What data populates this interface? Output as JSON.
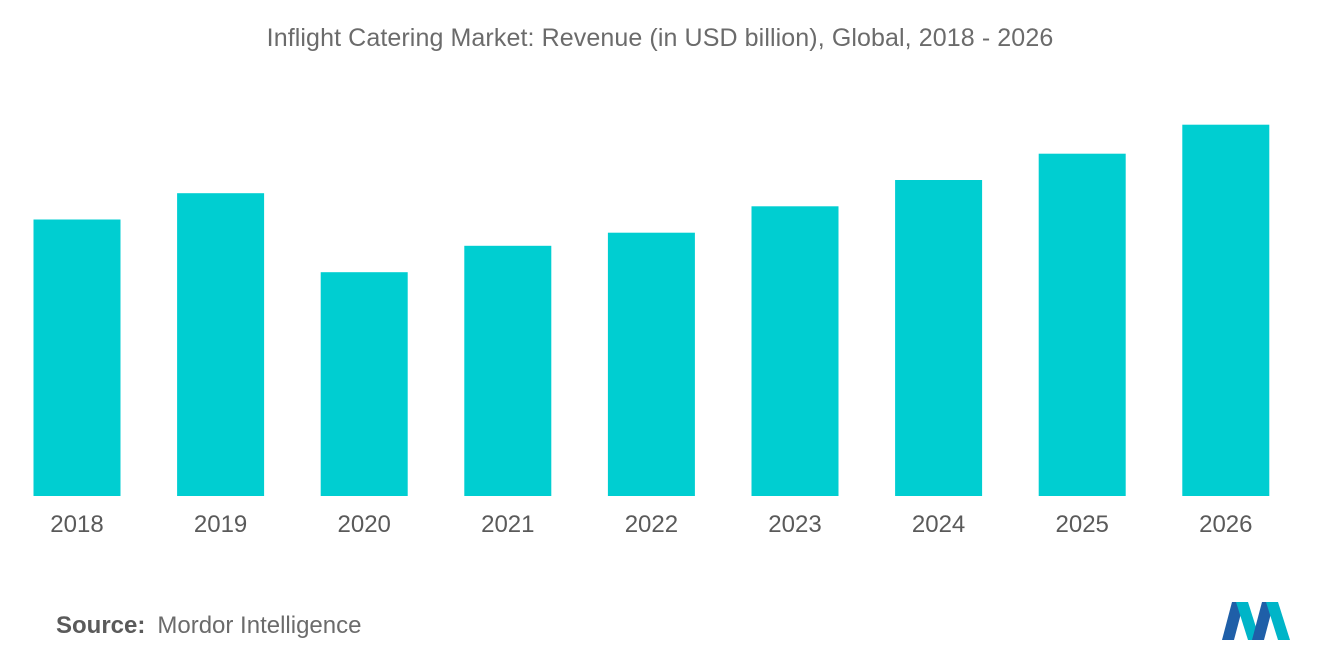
{
  "chart_data": {
    "type": "bar",
    "title": "Inflight Catering Market: Revenue (in USD billion), Global, 2018 - 2026",
    "categories": [
      "2018",
      "2019",
      "2020",
      "2021",
      "2022",
      "2023",
      "2024",
      "2025",
      "2026"
    ],
    "values": [
      21,
      23,
      17,
      19,
      20,
      22,
      24,
      26,
      28.2
    ],
    "xlabel": "",
    "ylabel": "",
    "ylim": [
      0,
      30
    ],
    "grid": false,
    "legend": "none",
    "bar_color": "#00CED1"
  },
  "source": {
    "label": "Source:",
    "text": "Mordor Intelligence"
  },
  "logo": {
    "icon": "mordor-intelligence-logo-icon",
    "colors": [
      "#1f5fa8",
      "#00b5c8"
    ]
  }
}
